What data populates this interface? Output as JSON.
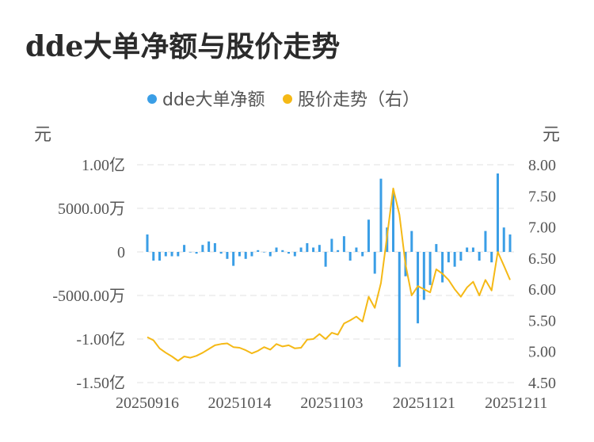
{
  "title": "dde大单净额与股价走势",
  "chart_data": {
    "type": "bar",
    "left_unit": "元",
    "right_unit": "元",
    "legend": [
      {
        "name": "dde大单净额",
        "color": "#3a9ee6"
      },
      {
        "name": "股价走势（右）",
        "color": "#f5b916"
      }
    ],
    "left_axis": {
      "ticks": [
        100000000.0,
        50000000.0,
        0,
        -50000000.0,
        -100000000.0,
        -150000000.0
      ],
      "tick_labels": [
        "1.00亿",
        "5000.00万",
        "0",
        "-5000.00万",
        "-1.00亿",
        "-1.50亿"
      ],
      "ylim": [
        -150000000.0,
        100000000.0
      ]
    },
    "right_axis": {
      "ticks": [
        8.0,
        7.5,
        7.0,
        6.5,
        6.0,
        5.5,
        5.0,
        4.5
      ],
      "tick_labels": [
        "8.00",
        "7.50",
        "7.00",
        "6.50",
        "6.00",
        "5.50",
        "5.00",
        "4.50"
      ],
      "ylim": [
        4.5,
        8.0
      ]
    },
    "x_tick_labels": [
      {
        "index": 0,
        "label": "20250916"
      },
      {
        "index": 15,
        "label": "20251014"
      },
      {
        "index": 30,
        "label": "20251103"
      },
      {
        "index": 45,
        "label": "20251121"
      },
      {
        "index": 60,
        "label": "20251211"
      }
    ],
    "series": [
      {
        "name": "dde大单净额",
        "kind": "bar",
        "values": [
          20000000,
          -10000000,
          -10000000,
          -5000000,
          -5000000,
          -5000000,
          8000000,
          0,
          -2000000,
          8000000,
          12000000,
          10000000,
          -2000000,
          -8000000,
          -16000000,
          -5000000,
          -8000000,
          -5000000,
          2000000,
          0,
          -5000000,
          5000000,
          2000000,
          -2000000,
          -5000000,
          5000000,
          10000000,
          5000000,
          8000000,
          -17000000,
          15000000,
          2000000,
          18000000,
          -10000000,
          5000000,
          -5000000,
          37000000,
          -25000000,
          84000000,
          28000000,
          70000000,
          -132000000,
          -28000000,
          24000000,
          -82000000,
          -55000000,
          -38000000,
          9000000,
          -35000000,
          -12000000,
          -17000000,
          -10000000,
          5000000,
          5000000,
          -10000000,
          24000000,
          -12000000,
          90000000,
          28000000,
          20000000
        ],
        "color": "#3a9ee6"
      },
      {
        "name": "股价走势（右）",
        "kind": "line",
        "values": [
          5.23,
          5.18,
          5.05,
          4.98,
          4.92,
          4.85,
          4.92,
          4.9,
          4.93,
          4.98,
          5.04,
          5.1,
          5.12,
          5.13,
          5.07,
          5.06,
          5.02,
          4.97,
          5.01,
          5.07,
          5.03,
          5.12,
          5.08,
          5.1,
          5.05,
          5.06,
          5.19,
          5.2,
          5.28,
          5.2,
          5.3,
          5.27,
          5.45,
          5.5,
          5.56,
          5.48,
          5.88,
          5.7,
          6.1,
          6.85,
          7.62,
          7.2,
          6.4,
          5.9,
          6.05,
          6.0,
          5.95,
          6.32,
          6.25,
          6.15,
          6.0,
          5.88,
          6.03,
          6.12,
          5.9,
          6.15,
          5.98,
          6.6,
          6.38,
          6.15
        ]
      }
    ],
    "grid": true
  }
}
